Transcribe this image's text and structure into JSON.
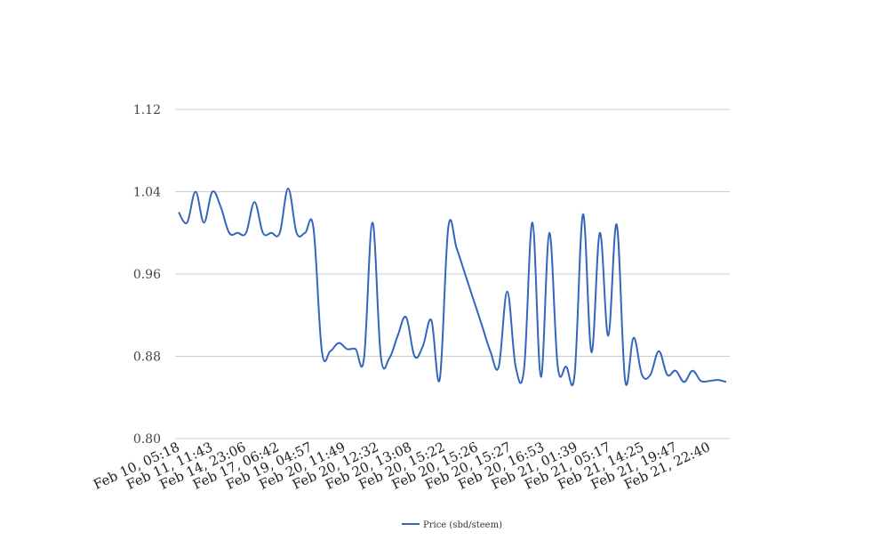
{
  "chart_data": {
    "type": "line",
    "title": "",
    "xlabel": "",
    "ylabel": "",
    "ylim": [
      0.8,
      1.12
    ],
    "yticks": [
      "0.80",
      "0.88",
      "0.96",
      "1.04",
      "1.12"
    ],
    "grid": true,
    "legend_position": "bottom-center",
    "x_tick_labels": [
      "Feb 10, 05:18",
      "Feb 11, 11:43",
      "Feb 14, 23:06",
      "Feb 17, 06:42",
      "Feb 19, 04:57",
      "Feb 20, 11:49",
      "Feb 20, 12:32",
      "Feb 20, 13:08",
      "Feb 20, 15:22",
      "Feb 20, 15:26",
      "Feb 20, 15:27",
      "Feb 20, 16:53",
      "Feb 21, 01:39",
      "Feb 21, 05:17",
      "Feb 21, 14:25",
      "Feb 21, 19:47",
      "Feb 21, 22:40"
    ],
    "series": [
      {
        "name": "Price (sbd/steem)",
        "color": "#3366bb",
        "values": [
          1.02,
          1.01,
          1.04,
          1.01,
          1.04,
          1.025,
          1.0,
          1.0,
          1.0,
          1.03,
          1.0,
          1.0,
          1.0,
          1.043,
          1.0,
          1.0,
          1.005,
          0.885,
          0.885,
          0.893,
          0.887,
          0.887,
          0.878,
          1.01,
          0.88,
          0.878,
          0.9,
          0.918,
          0.88,
          0.89,
          0.915,
          0.858,
          1.005,
          0.985,
          0.96,
          0.935,
          0.91,
          0.885,
          0.87,
          0.943,
          0.87,
          0.868,
          1.01,
          0.86,
          1.0,
          0.87,
          0.87,
          0.862,
          1.018,
          0.884,
          1.0,
          0.9,
          1.008,
          0.856,
          0.898,
          0.862,
          0.862,
          0.885,
          0.862,
          0.866,
          0.855,
          0.866,
          0.856,
          0.856,
          0.857,
          0.855
        ]
      }
    ]
  }
}
